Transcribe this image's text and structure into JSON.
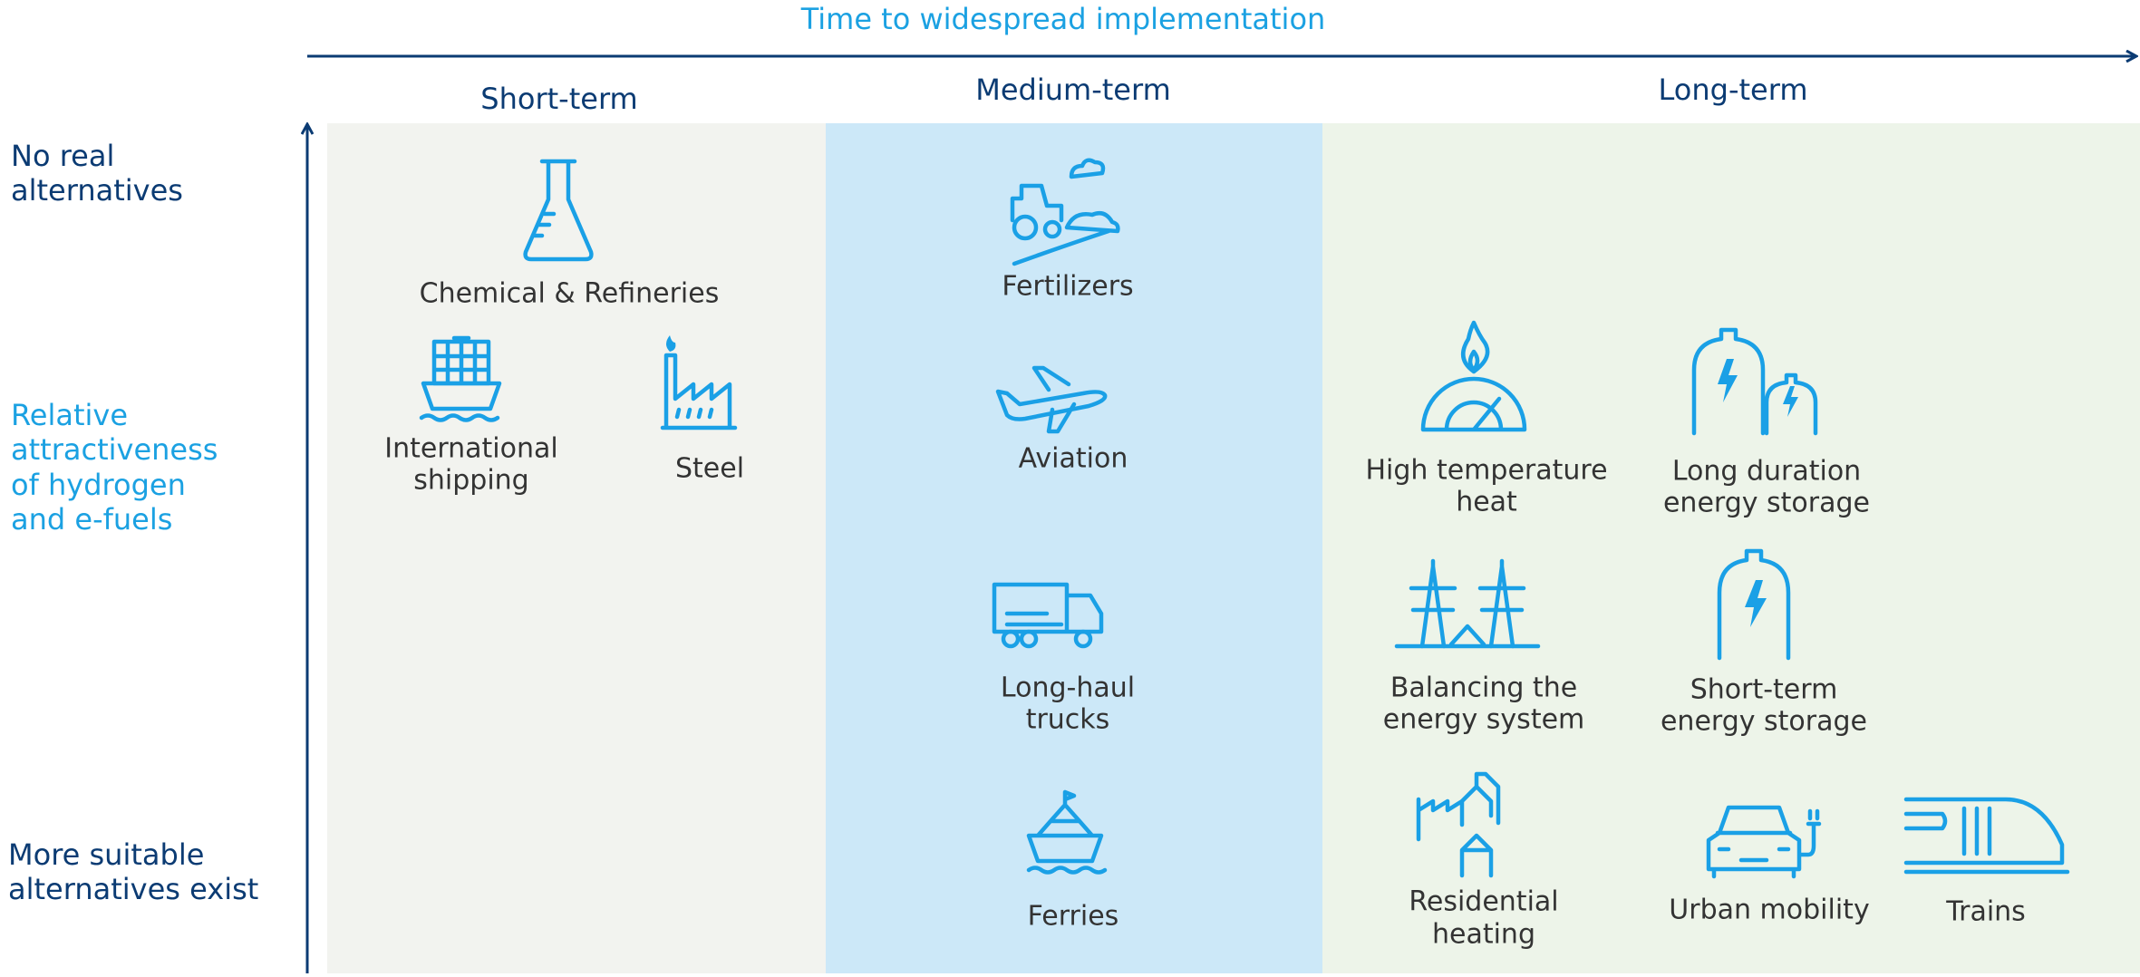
{
  "header": {
    "title": "Time to widespread implementation"
  },
  "columns": [
    "Short-term",
    "Medium-term",
    "Long-term"
  ],
  "y_labels": {
    "top": [
      "No real",
      "alternatives"
    ],
    "middle": [
      "Relative",
      "attractiveness",
      "of hydrogen",
      "and e-fuels"
    ],
    "bottom": [
      "More suitable",
      "alternatives exist"
    ]
  },
  "items": [
    {
      "lines": [
        "Chemical & Refineries"
      ]
    },
    {
      "lines": [
        "International",
        "shipping"
      ]
    },
    {
      "lines": [
        "Steel"
      ]
    },
    {
      "lines": [
        "Fertilizers"
      ]
    },
    {
      "lines": [
        "Aviation"
      ]
    },
    {
      "lines": [
        "Long-haul",
        "trucks"
      ]
    },
    {
      "lines": [
        "Ferries"
      ]
    },
    {
      "lines": [
        "High temperature",
        "heat"
      ]
    },
    {
      "lines": [
        "Long duration",
        "energy storage"
      ]
    },
    {
      "lines": [
        "Balancing the",
        "energy system"
      ]
    },
    {
      "lines": [
        "Short-term",
        "energy storage"
      ]
    },
    {
      "lines": [
        "Residential",
        "heating"
      ]
    },
    {
      "lines": [
        "Urban mobility"
      ]
    },
    {
      "lines": [
        "Trains"
      ]
    }
  ]
}
